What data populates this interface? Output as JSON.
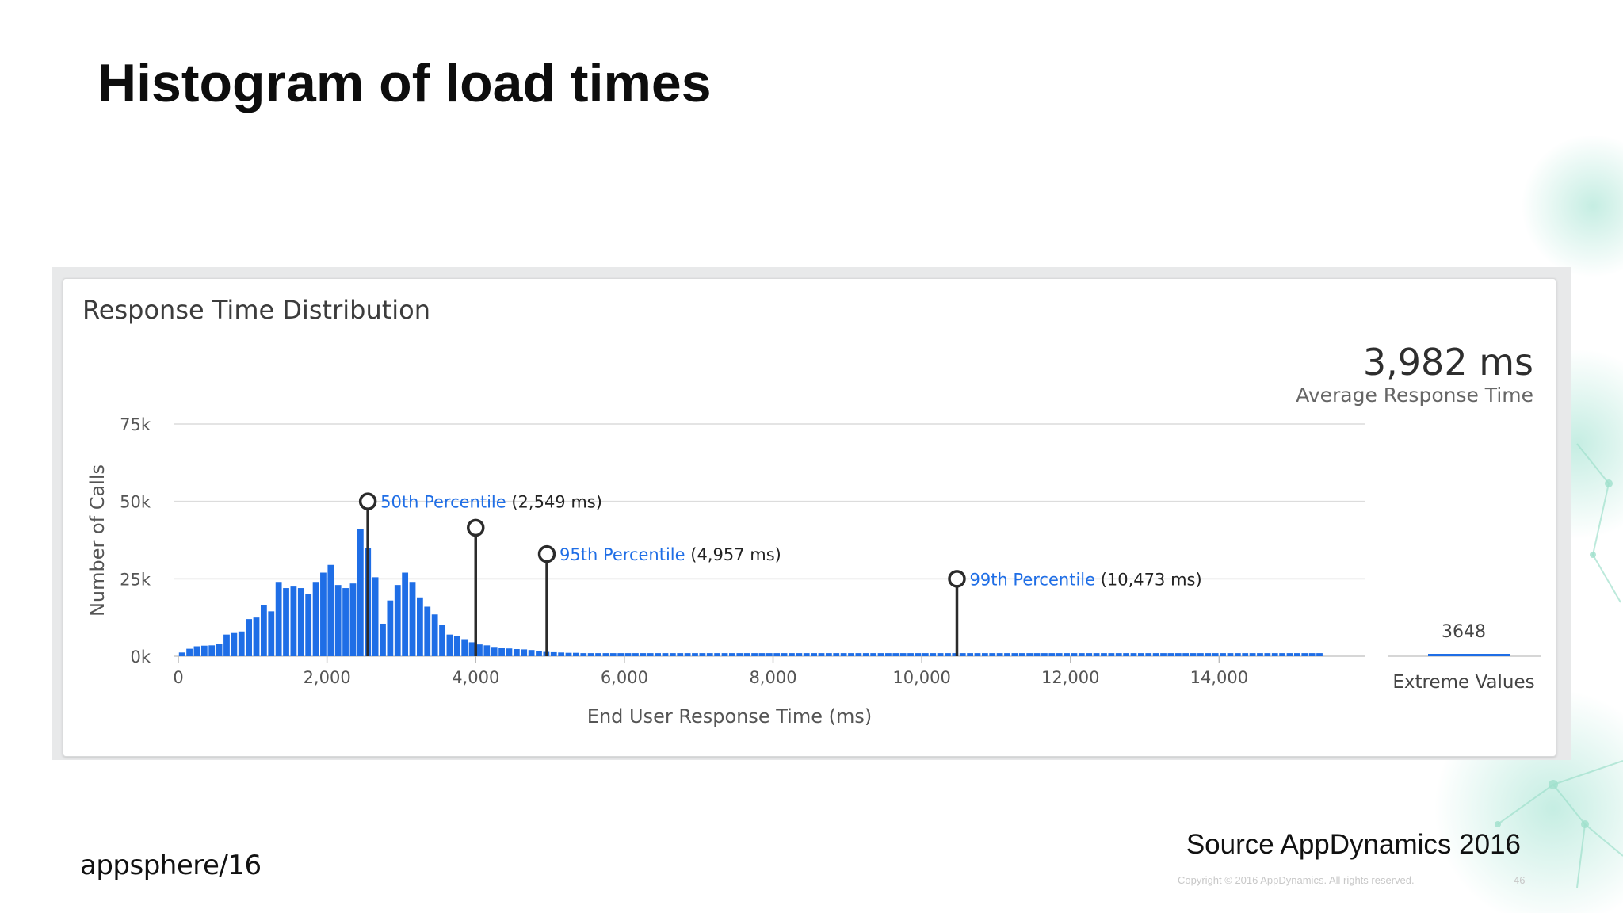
{
  "slide": {
    "title": "Histogram of load times",
    "source": "Source AppDynamics 2016",
    "copyright": "Copyright © 2016 AppDynamics. All rights reserved.",
    "page_number": "46",
    "brand": "appsphere/16"
  },
  "panel": {
    "title": "Response Time Distribution",
    "average_value": "3,982 ms",
    "average_label": "Average Response Time"
  },
  "colors": {
    "bar": "#1f6ee6",
    "percentile_label": "#1f6ee6",
    "marker": "#2b2b2b"
  },
  "chart_data": {
    "type": "bar",
    "title": "Response Time Distribution",
    "xlabel": "End User Response Time (ms)",
    "ylabel": "Number of Calls",
    "xlim": [
      0,
      16000
    ],
    "ylim": [
      0,
      75000
    ],
    "x_ticks": [
      0,
      2000,
      4000,
      6000,
      8000,
      10000,
      12000,
      14000
    ],
    "x_tick_labels": [
      "0",
      "2,000",
      "4,000",
      "6,000",
      "8,000",
      "10,000",
      "12,000",
      "14,000"
    ],
    "y_ticks": [
      0,
      25000,
      50000,
      75000
    ],
    "y_tick_labels": [
      "0k",
      "25k",
      "50k",
      "75k"
    ],
    "grid": true,
    "bin_width": 100,
    "series": [
      {
        "values": [
          1200,
          2400,
          3200,
          3400,
          3500,
          4000,
          7000,
          7500,
          8000,
          12000,
          12500,
          16500,
          14500,
          24000,
          22000,
          22500,
          22000,
          20000,
          24000,
          27000,
          29500,
          23000,
          22000,
          23500,
          41000,
          35000,
          25500,
          10500,
          18000,
          23000,
          27000,
          24000,
          19000,
          16000,
          13500,
          10000,
          7000,
          6500,
          5500,
          4500,
          3800,
          3500,
          3000,
          2800,
          2500,
          2300,
          2200,
          2000,
          1600,
          1400,
          1300,
          1200,
          1100,
          1100,
          1000,
          1000,
          1000,
          1000,
          1000,
          1000,
          1000,
          1000,
          1000,
          1000,
          1000,
          1000,
          1000,
          1000,
          1000,
          1000,
          1000,
          1000,
          1000,
          1000,
          1000,
          1000,
          1000,
          1000,
          1000,
          1000,
          1000,
          1000,
          1000,
          1000,
          1000,
          1000,
          1000,
          1000,
          1000,
          1000,
          1000,
          1000,
          1000,
          1000,
          1000,
          1000,
          1000,
          1000,
          1000,
          1000,
          1000,
          1000,
          1000,
          1000,
          1000,
          1000,
          1000,
          1000,
          1000,
          1000,
          1000,
          1000,
          1000,
          1000,
          1000,
          1000,
          1000,
          1000,
          1000,
          1000,
          1000,
          1000,
          1000,
          1000,
          1000,
          1000,
          1000,
          1000,
          1000,
          1000,
          1000,
          1000,
          1000,
          1000,
          1000,
          1000,
          1000,
          1000,
          1000,
          1000,
          1000,
          1000,
          1000,
          1000,
          1000,
          1000,
          1000,
          1000,
          1000,
          1000,
          1000,
          1000,
          1000,
          1000
        ]
      }
    ],
    "percentiles": [
      {
        "name": "50th Percentile",
        "value": 2549,
        "label": "(2,549 ms)"
      },
      {
        "name": "",
        "value": 4000,
        "label": ""
      },
      {
        "name": "95th Percentile",
        "value": 4957,
        "label": "(4,957 ms)"
      },
      {
        "name": "99th Percentile",
        "value": 10473,
        "label": "(10,473 ms)"
      }
    ],
    "extreme_values": {
      "label": "Extreme Values",
      "count": 3648
    }
  }
}
